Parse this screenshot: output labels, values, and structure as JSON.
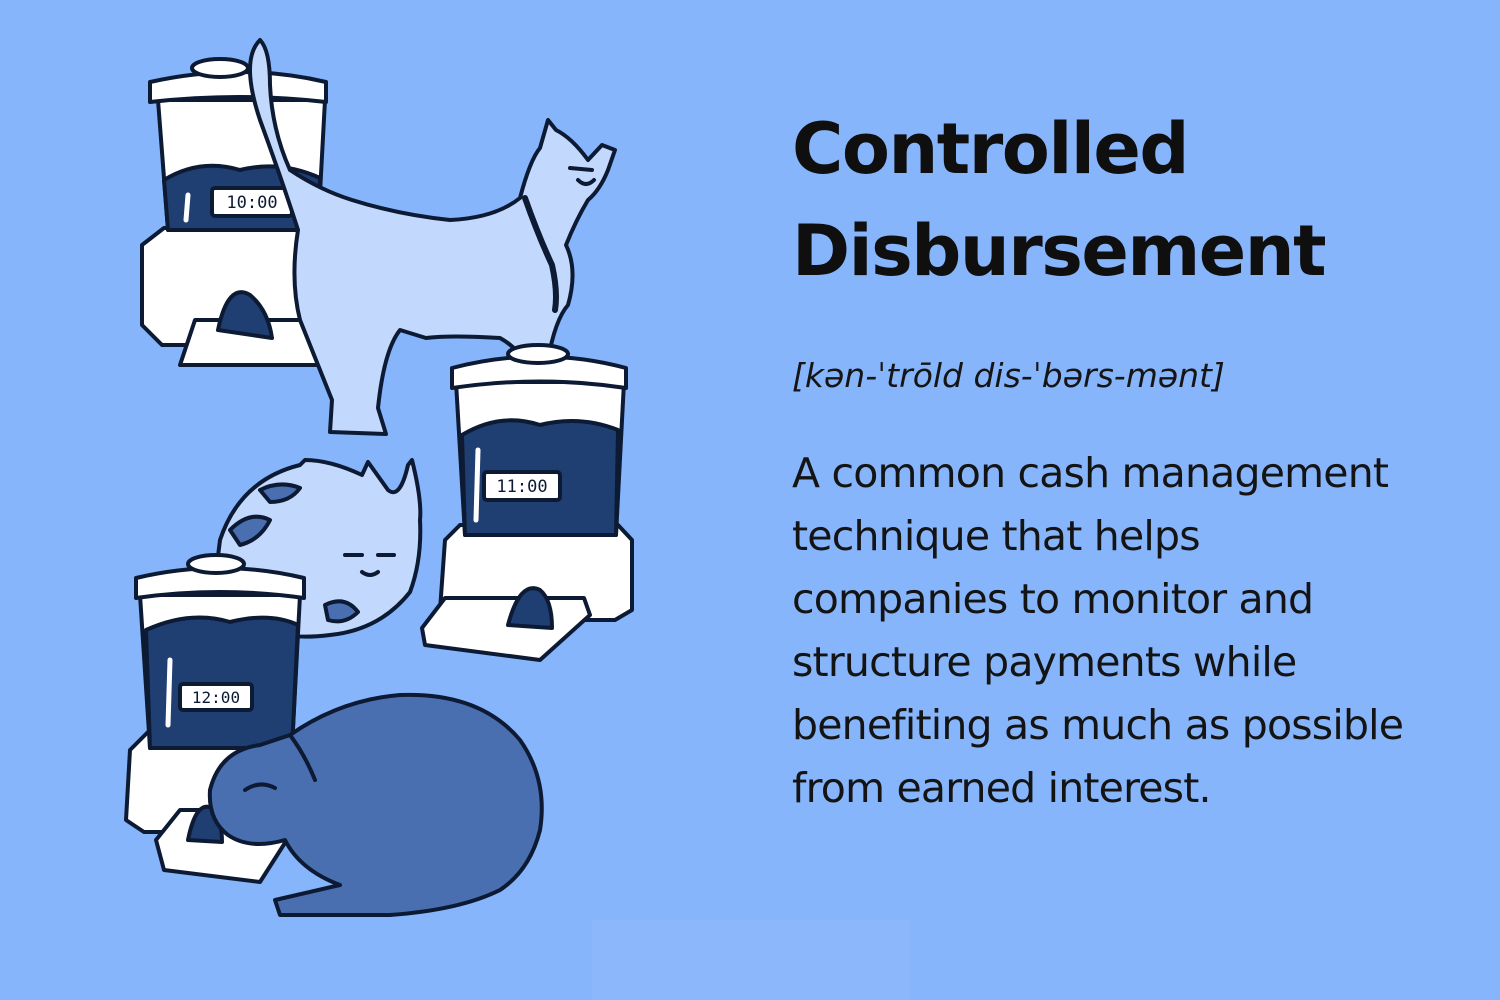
{
  "title": {
    "line1": "Controlled",
    "line2": "Disbursement"
  },
  "pronunciation": "[kən-ˈtrōld dis-ˈbərs-mənt]",
  "definition": {
    "lines": [
      "A common cash management",
      "technique that helps",
      "companies to monitor and",
      "structure payments while",
      "benefiting as much as possible",
      "from earned interest."
    ]
  },
  "illustration": {
    "feeders": [
      {
        "clock": "10:00"
      },
      {
        "clock": "11:00"
      },
      {
        "clock": "12:00"
      }
    ]
  },
  "colors": {
    "background": "#87b5fb",
    "food": "#1f3f73",
    "feeder": "#ffffff",
    "cat_light": "#c2d8fd",
    "cat_dark": "#4a6fb0",
    "text": "#111111"
  }
}
